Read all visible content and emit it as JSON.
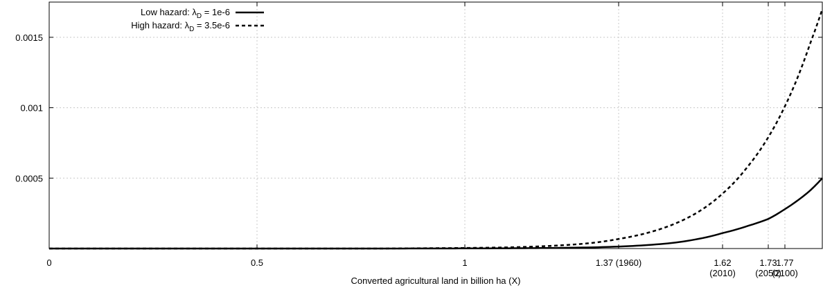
{
  "chart_data": {
    "type": "line",
    "xlabel": "Converted agricultural land in billion ha (X)",
    "ylabel": "",
    "xlim": [
      0,
      1.86
    ],
    "ylim": [
      0,
      0.00175
    ],
    "grid": true,
    "legend_position": "top-left",
    "x_ticks": [
      {
        "value": 0,
        "label": "0"
      },
      {
        "value": 0.5,
        "label": "0.5"
      },
      {
        "value": 1,
        "label": "1"
      },
      {
        "value": 1.37,
        "label": "1.37 (1960)"
      },
      {
        "value": 1.62,
        "label": "1.62",
        "label2": "(2010)"
      },
      {
        "value": 1.73,
        "label": "1.73",
        "label2": "(2050)"
      },
      {
        "value": 1.77,
        "label": "1.77",
        "label2": "(2100)"
      }
    ],
    "y_ticks": [
      {
        "value": 0.0005,
        "label": "0.0005"
      },
      {
        "value": 0.001,
        "label": "0.001"
      },
      {
        "value": 0.0015,
        "label": "0.0015"
      }
    ],
    "series": [
      {
        "name": "Low hazard: λ_D = 1e-6",
        "legend_main": "Low hazard: λ",
        "legend_sub": "D",
        "legend_rest": " = 1e-6",
        "style": "solid",
        "x": [
          0,
          0.2,
          0.4,
          0.6,
          0.8,
          1.0,
          1.1,
          1.2,
          1.3,
          1.37,
          1.45,
          1.5,
          1.55,
          1.62,
          1.68,
          1.73,
          1.77,
          1.8,
          1.83,
          1.86
        ],
        "y": [
          0,
          0,
          0,
          0,
          0,
          1e-06,
          2e-06,
          4e-06,
          8e-06,
          1.4e-05,
          2.7e-05,
          4e-05,
          6.2e-05,
          0.00011,
          0.00016,
          0.00021,
          0.00028,
          0.00034,
          0.00041,
          0.0005
        ]
      },
      {
        "name": "High hazard: λ_D = 3.5e-6",
        "legend_main": "High hazard: λ",
        "legend_sub": "D",
        "legend_rest": " = 3.5e-6",
        "style": "dashed",
        "x": [
          0,
          0.2,
          0.4,
          0.6,
          0.8,
          1.0,
          1.1,
          1.2,
          1.3,
          1.37,
          1.45,
          1.5,
          1.55,
          1.62,
          1.68,
          1.73,
          1.77,
          1.8,
          1.83,
          1.86
        ],
        "y": [
          0,
          0,
          0,
          0,
          0,
          4e-06,
          8e-06,
          1.8e-05,
          3.8e-05,
          6.8e-05,
          0.00012,
          0.00017,
          0.00024,
          0.00039,
          0.00058,
          0.00079,
          0.00101,
          0.00121,
          0.00145,
          0.0017
        ]
      }
    ]
  }
}
